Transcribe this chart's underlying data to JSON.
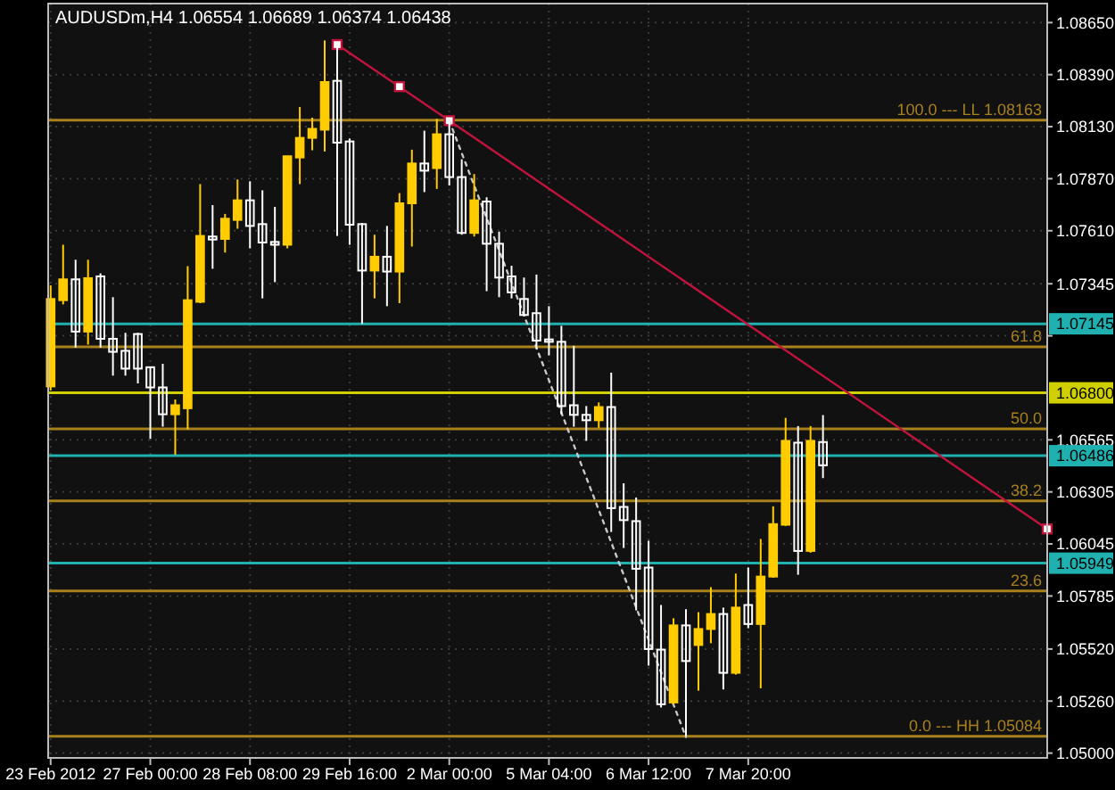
{
  "chart_data": {
    "type": "candlestick",
    "title": "AUDUSDm,H4  1.06554 1.06689 1.06374 1.06438",
    "categories": [
      "23 Feb 2012",
      null,
      null,
      null,
      null,
      null,
      null,
      null,
      "27 Feb 00:00",
      null,
      null,
      null,
      null,
      null,
      null,
      null,
      "28 Feb 08:00",
      null,
      null,
      null,
      null,
      null,
      null,
      null,
      "29 Feb 16:00",
      null,
      null,
      null,
      null,
      null,
      null,
      null,
      "2 Mar 00:00",
      null,
      null,
      null,
      null,
      null,
      null,
      null,
      "5 Mar 04:00",
      null,
      null,
      null,
      null,
      null,
      null,
      null,
      "6 Mar 12:00",
      null,
      null,
      null,
      null,
      null,
      null,
      null,
      "7 Mar 20:00",
      null,
      null,
      null,
      null,
      null,
      null,
      null,
      null,
      null,
      null,
      null,
      null,
      null,
      null,
      null,
      null,
      null,
      null,
      null,
      null,
      null,
      null,
      null,
      null
    ],
    "ohlc": [
      [
        1.06832,
        1.07337,
        1.06812,
        1.07269
      ],
      [
        1.07263,
        1.0754,
        1.07242,
        1.07367
      ],
      [
        1.07367,
        1.07465,
        1.07026,
        1.07106
      ],
      [
        1.07106,
        1.07465,
        1.07041,
        1.07373
      ],
      [
        1.07382,
        1.07397,
        1.07026,
        1.0707
      ],
      [
        1.0707,
        1.07278,
        1.06886,
        1.07005
      ],
      [
        1.0701,
        1.071,
        1.06886,
        1.06921
      ],
      [
        1.07094,
        1.071,
        1.06847,
        1.06921
      ],
      [
        1.06928,
        1.06928,
        1.06571,
        1.06827
      ],
      [
        1.06827,
        1.06945,
        1.06631,
        1.06693
      ],
      [
        1.06693,
        1.06767,
        1.06491,
        1.06738
      ],
      [
        1.06723,
        1.07433,
        1.06618,
        1.07263
      ],
      [
        1.07255,
        1.07843,
        1.07248,
        1.07584
      ],
      [
        1.07581,
        1.07738,
        1.0742,
        1.07566
      ],
      [
        1.07569,
        1.07694,
        1.07501,
        1.0767
      ],
      [
        1.07664,
        1.07866,
        1.0762,
        1.07762
      ],
      [
        1.07762,
        1.07857,
        1.07522,
        1.07634
      ],
      [
        1.07643,
        1.07812,
        1.07272,
        1.07551
      ],
      [
        1.07554,
        1.07729,
        1.07353,
        1.0754
      ],
      [
        1.0754,
        1.07985,
        1.07522,
        1.07982
      ],
      [
        1.07976,
        1.08228,
        1.07843,
        1.08074
      ],
      [
        1.08074,
        1.08175,
        1.08012,
        1.08119
      ],
      [
        1.08115,
        1.08561,
        1.08006,
        1.08353
      ],
      [
        1.08359,
        1.0854,
        1.07584,
        1.0805
      ],
      [
        1.08056,
        1.08071,
        1.0754,
        1.0764
      ],
      [
        1.07643,
        1.07649,
        1.07144,
        1.07411
      ],
      [
        1.07411,
        1.0759,
        1.07272,
        1.0748
      ],
      [
        1.0748,
        1.07634,
        1.07233,
        1.07406
      ],
      [
        1.07406,
        1.07798,
        1.07248,
        1.07747
      ],
      [
        1.07747,
        1.08015,
        1.07531,
        1.07946
      ],
      [
        1.07946,
        1.0811,
        1.07803,
        1.0791
      ],
      [
        1.07923,
        1.08169,
        1.07819,
        1.08092
      ],
      [
        1.08092,
        1.08163,
        1.07836,
        1.07878
      ],
      [
        1.07878,
        1.07967,
        1.0759,
        1.07599
      ],
      [
        1.07599,
        1.07893,
        1.07581,
        1.07762
      ],
      [
        1.07756,
        1.07777,
        1.07308,
        1.07545
      ],
      [
        1.07545,
        1.07605,
        1.07278,
        1.07376
      ],
      [
        1.07382,
        1.07435,
        1.07272,
        1.07302
      ],
      [
        1.07269,
        1.07376,
        1.07183,
        1.07189
      ],
      [
        1.07198,
        1.07391,
        1.07019,
        1.07061
      ],
      [
        1.07067,
        1.07233,
        1.06987,
        1.07055
      ],
      [
        1.07055,
        1.07135,
        1.06693,
        1.06734
      ],
      [
        1.06738,
        1.07035,
        1.06631,
        1.0669
      ],
      [
        1.0669,
        1.06734,
        1.0656,
        1.06663
      ],
      [
        1.06663,
        1.06752,
        1.06625,
        1.06729
      ],
      [
        1.06729,
        1.06901,
        1.06105,
        1.06224
      ],
      [
        1.0623,
        1.06348,
        1.06025,
        1.06164
      ],
      [
        1.06159,
        1.06277,
        1.05713,
        1.05921
      ],
      [
        1.05927,
        1.06061,
        1.05437,
        1.0552
      ],
      [
        1.05517,
        1.0574,
        1.05228,
        1.05244
      ],
      [
        1.05253,
        1.05674,
        1.05244,
        1.05638
      ],
      [
        1.05638,
        1.05719,
        1.05084,
        1.0546
      ],
      [
        1.0554,
        1.05704,
        1.05312,
        1.0562
      ],
      [
        1.0562,
        1.05829,
        1.05549,
        1.05695
      ],
      [
        1.05695,
        1.05727,
        1.05318,
        1.05401
      ],
      [
        1.05401,
        1.05897,
        1.05392,
        1.05727
      ],
      [
        1.0574,
        1.05927,
        1.05624,
        1.05645
      ],
      [
        1.05645,
        1.0607,
        1.05324,
        1.05882
      ],
      [
        1.05882,
        1.06233,
        1.05876,
        1.06144
      ],
      [
        1.06141,
        1.06675,
        1.06135,
        1.0656
      ],
      [
        1.06551,
        1.06634,
        1.05891,
        1.0601
      ],
      [
        1.0601,
        1.06634,
        1.06001,
        1.0656
      ],
      [
        1.06554,
        1.06689,
        1.06374,
        1.06438
      ],
      null,
      null,
      null,
      null,
      null,
      null,
      null,
      null,
      null,
      null,
      null,
      null,
      null,
      null,
      null,
      null,
      null,
      null
    ],
    "colors": [
      "#ffcc00",
      "#ffcc00",
      "#ffffff",
      "#ffcc00",
      "#ffffff",
      "#ffffff",
      "#ffffff",
      "#ffffff",
      "#ffffff",
      "#ffffff",
      "#ffcc00",
      "#ffcc00",
      "#ffcc00",
      "#ffffff",
      "#ffcc00",
      "#ffcc00",
      "#ffffff",
      "#ffffff",
      "#ffffff",
      "#ffcc00",
      "#ffcc00",
      "#ffcc00",
      "#ffcc00",
      "#ffffff",
      "#ffffff",
      "#ffffff",
      "#ffcc00",
      "#ffffff",
      "#ffcc00",
      "#ffcc00",
      "#ffffff",
      "#ffcc00",
      "#ffffff",
      "#ffffff",
      "#ffcc00",
      "#ffffff",
      "#ffffff",
      "#ffffff",
      "#ffffff",
      "#ffffff",
      "#ffffff",
      "#ffffff",
      "#ffffff",
      "#ffffff",
      "#ffcc00",
      "#ffffff",
      "#ffffff",
      "#ffffff",
      "#ffffff",
      "#ffffff",
      "#ffcc00",
      "#ffffff",
      "#ffcc00",
      "#ffcc00",
      "#ffffff",
      "#ffcc00",
      "#ffffff",
      "#ffcc00",
      "#ffcc00",
      "#ffcc00",
      "#ffffff",
      "#ffcc00",
      "#ffffff",
      null,
      null,
      null,
      null,
      null,
      null,
      null,
      null,
      null,
      null,
      null,
      null,
      null,
      null,
      null,
      null,
      null,
      null
    ],
    "series": [
      {
        "type": "line",
        "color": "#c0143c",
        "marker": "square",
        "line_style": "solid",
        "values": [
          null,
          null,
          null,
          null,
          null,
          null,
          null,
          null,
          null,
          null,
          null,
          null,
          null,
          null,
          null,
          null,
          null,
          null,
          null,
          null,
          null,
          null,
          null,
          1.0854,
          null,
          null,
          null,
          null,
          1.0833,
          null,
          null,
          null,
          1.0816,
          null,
          null,
          null,
          null,
          null,
          null,
          null,
          null,
          null,
          null,
          null,
          null,
          null,
          null,
          null,
          null,
          null,
          null,
          null,
          null,
          null,
          null,
          null,
          null,
          null,
          null,
          null,
          null,
          null,
          null,
          null,
          null,
          null,
          null,
          null,
          null,
          null,
          null,
          null,
          null,
          null,
          null,
          null,
          null,
          null,
          null,
          null,
          1.0612
        ]
      },
      {
        "type": "line",
        "color": "#c8c8c8",
        "marker": "none",
        "line_style": "dotted",
        "values": [
          null,
          null,
          null,
          null,
          null,
          null,
          null,
          null,
          null,
          null,
          null,
          null,
          null,
          null,
          null,
          null,
          null,
          null,
          null,
          null,
          null,
          null,
          null,
          null,
          null,
          null,
          null,
          null,
          null,
          null,
          null,
          null,
          1.0816,
          null,
          null,
          null,
          null,
          null,
          null,
          null,
          null,
          null,
          null,
          null,
          null,
          null,
          null,
          null,
          null,
          null,
          null,
          1.0508,
          null,
          null,
          null,
          null,
          null,
          null,
          null,
          null,
          null,
          null,
          null,
          null,
          null,
          null,
          null,
          null,
          null,
          null,
          null,
          null,
          null,
          null,
          null,
          null,
          null,
          null,
          null,
          null,
          null
        ]
      }
    ],
    "ref_lines": [
      {
        "axis": "y",
        "value": 1.07145,
        "label": "1.07145",
        "color": "#20b0b0"
      },
      {
        "axis": "y",
        "value": 1.068,
        "label": "1.06800",
        "color": "#d0d000"
      },
      {
        "axis": "y",
        "value": 1.06486,
        "label": "1.06486",
        "color": "#20b0b0"
      },
      {
        "axis": "y",
        "value": 1.05949,
        "label": "1.05949",
        "color": "#20b0b0"
      },
      {
        "axis": "y",
        "value": 1.08163,
        "label": "100.0 --- LL 1.08163",
        "color": "#a8801c"
      },
      {
        "axis": "y",
        "value": 1.0703,
        "color": "#a8801c"
      },
      {
        "axis": "y",
        "value": 1.0662,
        "color": "#a8801c"
      },
      {
        "axis": "y",
        "value": 1.0626,
        "color": "#a8801c"
      },
      {
        "axis": "y",
        "value": 1.0581,
        "color": "#a8801c"
      },
      {
        "axis": "y",
        "value": 1.05084,
        "label": "0.0 --- HH 1.05084",
        "color": "#a8801c"
      }
    ],
    "annotations": [
      {
        "text": "61.8",
        "y": 1.0703
      },
      {
        "text": "50.0",
        "y": 1.0662
      },
      {
        "text": "38.2",
        "y": 1.0626
      },
      {
        "text": "23.6",
        "y": 1.0581
      }
    ],
    "ylim": [
      1.04976,
      1.08745
    ],
    "yticks": [
      {
        "value": 1.0865,
        "label": "1.08650"
      },
      {
        "value": 1.0839,
        "label": "1.08390"
      },
      {
        "value": 1.0813,
        "label": "1.08130"
      },
      {
        "value": 1.0787,
        "label": "1.07870"
      },
      {
        "value": 1.0761,
        "label": "1.07610"
      },
      1.07345,
      {
        "value": 1.07085,
        "label": null
      },
      1.06565,
      1.06305,
      1.06045,
      1.05785,
      {
        "value": 1.0552,
        "label": "1.05520"
      },
      {
        "value": 1.0526,
        "label": "1.05260"
      },
      {
        "value": 1.05,
        "label": "1.05000"
      }
    ],
    "grid": true
  }
}
